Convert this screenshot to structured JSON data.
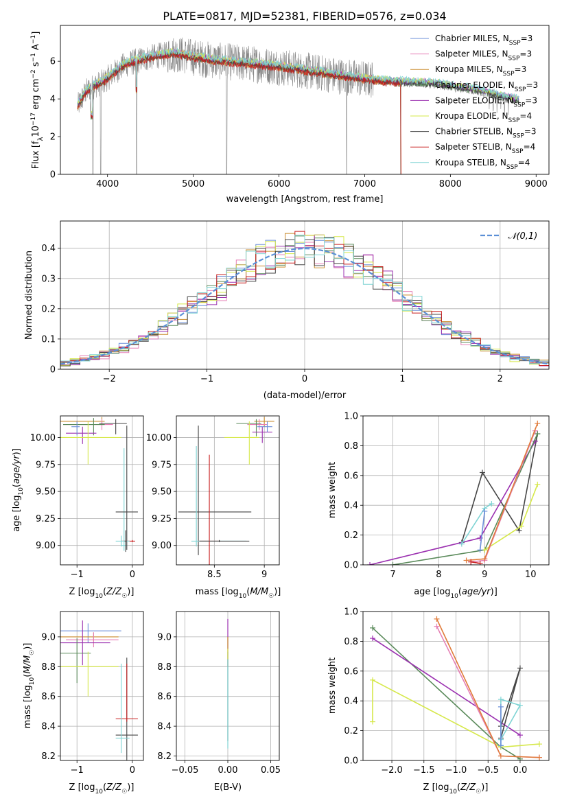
{
  "colors": {
    "Chabrier MILES": "#6b8fd9",
    "Salpeter MILES": "#e57fb5",
    "Kroupa MILES": "#c98a2a",
    "Chabrier ELODIE": "#5a8a5a",
    "Salpeter ELODIE": "#9b30b0",
    "Kroupa ELODIE": "#d6e84a",
    "Chabrier STELIB": "#444444",
    "Salpeter STELIB": "#c81e1e",
    "Kroupa STELIB": "#7fd4d4",
    "grey": "#888888",
    "orange": "#e07b3a",
    "gaussian": "#5b8fd6",
    "grid": "#b0b0b0"
  },
  "chart_data": [
    {
      "id": "spectrum",
      "type": "line",
      "title": "PLATE=0817, MJD=52381, FIBERID=0576, z=0.034",
      "xlabel": "wavelength [Angstrom, rest frame]",
      "ylabel": "Flux [f_λ10^-17 erg cm^-2 s^-1 A^-1]",
      "xlim": [
        3450,
        9150
      ],
      "ylim": [
        0,
        7.9
      ],
      "xticks": [
        4000,
        5000,
        6000,
        7000,
        8000,
        9000
      ],
      "yticks": [
        0,
        2,
        4,
        6
      ],
      "legend_position": "top-right",
      "legend": [
        {
          "name": "Chabrier MILES",
          "nssp": "3"
        },
        {
          "name": "Salpeter MILES",
          "nssp": "3"
        },
        {
          "name": "Kroupa MILES",
          "nssp": "3"
        },
        {
          "name": "Chabrier ELODIE",
          "nssp": "3"
        },
        {
          "name": "Salpeter ELODIE",
          "nssp": "3"
        },
        {
          "name": "Kroupa ELODIE",
          "nssp": "4"
        },
        {
          "name": "Chabrier STELIB",
          "nssp": "3"
        },
        {
          "name": "Salpeter STELIB",
          "nssp": "4"
        },
        {
          "name": "Kroupa STELIB",
          "nssp": "4"
        }
      ],
      "continuum": [
        [
          3650,
          3.6
        ],
        [
          3750,
          4.4
        ],
        [
          3850,
          4.7
        ],
        [
          3950,
          4.9
        ],
        [
          4050,
          5.3
        ],
        [
          4200,
          5.8
        ],
        [
          4400,
          6.1
        ],
        [
          4600,
          6.3
        ],
        [
          4800,
          6.4
        ],
        [
          5000,
          6.2
        ],
        [
          5300,
          6.0
        ],
        [
          5600,
          5.9
        ],
        [
          6000,
          5.7
        ],
        [
          6300,
          5.5
        ],
        [
          6600,
          5.3
        ],
        [
          6900,
          5.1
        ],
        [
          7200,
          4.95
        ],
        [
          7500,
          4.85
        ],
        [
          7800,
          4.8
        ],
        [
          8000,
          4.65
        ],
        [
          8300,
          4.45
        ],
        [
          8600,
          4.1
        ],
        [
          8800,
          3.9
        ]
      ],
      "dips": [
        [
          3830,
          0.0
        ],
        [
          3920,
          0.0
        ],
        [
          4340,
          0.0
        ],
        [
          5390,
          0.0
        ],
        [
          6790,
          0.0
        ],
        [
          7420,
          0.0
        ]
      ]
    },
    {
      "id": "residuals",
      "type": "line",
      "xlabel": "(data-model)/error",
      "ylabel": "Normed distribution",
      "xlim": [
        -2.5,
        2.5
      ],
      "ylim": [
        0,
        0.49
      ],
      "xticks": [
        -2,
        -1,
        0,
        1,
        2
      ],
      "yticks": [
        0.0,
        0.1,
        0.2,
        0.3,
        0.4
      ],
      "legend": [
        "𝒩(0,1)"
      ],
      "legend_position": "top-right"
    },
    {
      "id": "z_age",
      "type": "scatter",
      "xlabel": "Z [log10(Z/Z☉)]",
      "ylabel": "age  [log10(age/yr)]",
      "xlim": [
        -1.3,
        0.2
      ],
      "ylim": [
        8.82,
        10.2
      ],
      "xticks": [
        -1,
        0
      ],
      "yticks": [
        9.0,
        9.25,
        9.5,
        9.75,
        10.0
      ]
    },
    {
      "id": "mass_age",
      "type": "scatter",
      "xlabel": "mass [log10(M/M☉)]",
      "ylabel": "",
      "xlim": [
        8.12,
        9.15
      ],
      "ylim": [
        8.82,
        10.2
      ],
      "xticks": [
        8.5,
        9.0
      ],
      "yticks": [
        9.0,
        9.25,
        9.5,
        9.75,
        10.0
      ]
    },
    {
      "id": "age_weight",
      "type": "line",
      "xlabel": "age  [log10(age/yr)]",
      "ylabel": "mass weight",
      "xlim": [
        6.35,
        10.4
      ],
      "ylim": [
        0,
        1.0
      ],
      "xticks": [
        7,
        8,
        9,
        10
      ],
      "yticks": [
        0.0,
        0.2,
        0.4,
        0.6,
        0.8,
        1.0
      ]
    },
    {
      "id": "z_mass",
      "type": "scatter",
      "xlabel": "Z [log10(Z/Z☉)]",
      "ylabel": "mass [log10(M/M☉)]",
      "xlim": [
        -1.3,
        0.2
      ],
      "ylim": [
        8.17,
        9.17
      ],
      "xticks": [
        -1,
        0
      ],
      "yticks": [
        8.2,
        8.4,
        8.6,
        8.8,
        9.0
      ]
    },
    {
      "id": "ebv_mass",
      "type": "scatter",
      "xlabel": "E(B-V)",
      "ylabel": "",
      "xlim": [
        -0.06,
        0.06
      ],
      "ylim": [
        8.17,
        9.17
      ],
      "xticks": [
        -0.05,
        0.0,
        0.05
      ],
      "yticks": [
        8.2,
        8.4,
        8.6,
        8.8,
        9.0
      ]
    },
    {
      "id": "z_weight",
      "type": "line",
      "xlabel": "Z [log10(Z/Z☉)]",
      "ylabel": "mass weight",
      "xlim": [
        -2.45,
        0.45
      ],
      "ylim": [
        0,
        1.0
      ],
      "xticks": [
        -2.0,
        -1.5,
        -1.0,
        -0.5,
        0.0
      ],
      "yticks": [
        0.0,
        0.2,
        0.4,
        0.6,
        0.8,
        1.0
      ]
    }
  ]
}
